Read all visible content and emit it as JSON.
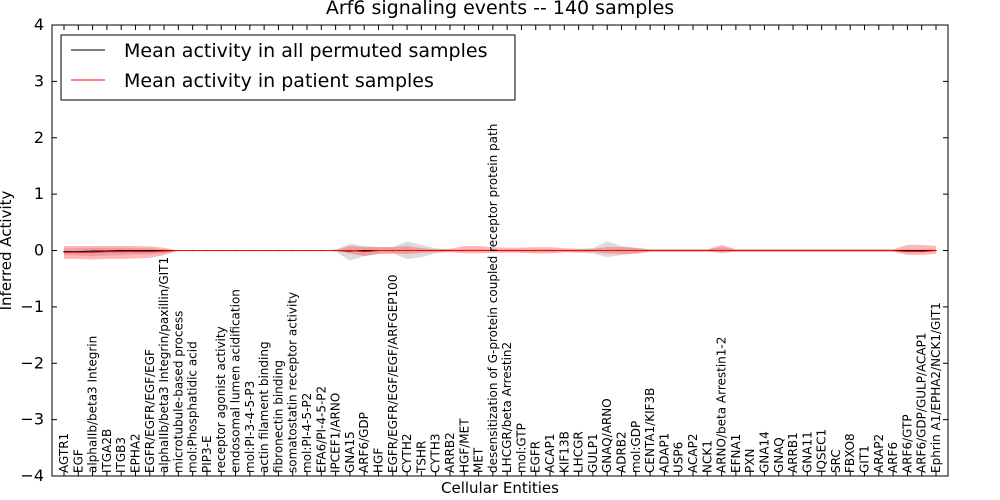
{
  "chart_data": {
    "type": "line",
    "title": "Arf6 signaling events -- 140 samples",
    "xlabel": "Cellular Entities",
    "ylabel": "Inferred Activity",
    "ylim": [
      -4,
      4
    ],
    "yticks": [
      4,
      3,
      2,
      1,
      0,
      -1,
      -2,
      -3,
      -4
    ],
    "ytick_labels": [
      "4",
      "3",
      "2",
      "1",
      "0",
      "−1",
      "−2",
      "−3",
      "−4"
    ],
    "grid": false,
    "legend_position": "top-left",
    "categories": [
      "AGTR1",
      "EGF",
      "alphaIIb/beta3 Integrin",
      "ITGA2B",
      "ITGB3",
      "EPHA2",
      "EGFR/EGFR/EGF/EGF",
      "alphaIIb/beta3 Integrin/paxillin/GIT1",
      "microtubule-based process",
      "mol:Phosphatidic acid",
      "PIP3-E",
      "receptor agonist activity",
      "endosomal lumen acidification",
      "mol:PI-3-4-5-P3",
      "actin filament binding",
      "fibronectin binding",
      "somatostatin receptor activity",
      "mol:PI-4-5-P2",
      "EFA6/PI-4-5-P2",
      "IPCEF1/ARNO",
      "GNA15",
      "ARF6/GDP",
      "HGF",
      "EGFR/EGFR/EGF/EGF/ARFGEP100",
      "CYTH2",
      "TSHR",
      "CYTH3",
      "ARRB2",
      "HGF/MET",
      "MET",
      "desensitization of G-protein coupled receptor protein path",
      "LHCGR/beta Arrestin2",
      "mol:GTP",
      "EGFR",
      "ACAP1",
      "KIF13B",
      "LHCGR",
      "GULP1",
      "GNAQ/ARNO",
      "ADRB2",
      "mol:GDP",
      "CENTA1/KIF3B",
      "ADAP1",
      "USP6",
      "ACAP2",
      "NCK1",
      "ARNO/beta Arrestin1-2",
      "EFNA1",
      "PXN",
      "GNA14",
      "GNAQ",
      "ARRB1",
      "GNA11",
      "IQSEC1",
      "SRC",
      "FBXO8",
      "GIT1",
      "ARAP2",
      "ARF6",
      "ARF6/GTP",
      "ARF6/GDP/GULP/ACAP1",
      "Ephrin A1/EPHA2/NCK1/GIT1"
    ],
    "series": [
      {
        "name": "Mean activity in all permuted samples",
        "color": "#000000",
        "values": [
          -0.02,
          -0.02,
          -0.01,
          -0.01,
          0.0,
          0.0,
          0.0,
          0.0,
          0.0,
          0.0,
          0.0,
          0.0,
          0.0,
          0.0,
          0.0,
          0.0,
          0.0,
          0.0,
          0.0,
          0.0,
          -0.01,
          0.0,
          0.0,
          0.0,
          0.0,
          0.0,
          0.0,
          0.0,
          0.0,
          0.0,
          0.0,
          0.0,
          0.0,
          0.0,
          0.0,
          0.0,
          0.0,
          0.0,
          0.0,
          0.0,
          0.0,
          0.0,
          0.0,
          0.0,
          0.0,
          0.0,
          0.0,
          0.0,
          0.0,
          0.0,
          0.0,
          0.0,
          0.0,
          0.0,
          0.0,
          0.0,
          0.0,
          0.0,
          0.0,
          0.0,
          0.0,
          0.0
        ],
        "band_lower": [
          -0.08,
          -0.09,
          -0.1,
          -0.09,
          -0.08,
          -0.07,
          -0.07,
          -0.05,
          0.0,
          0.0,
          0.0,
          0.0,
          0.0,
          0.0,
          0.0,
          0.0,
          0.0,
          0.0,
          0.0,
          -0.02,
          -0.18,
          -0.1,
          -0.06,
          -0.05,
          -0.15,
          -0.12,
          -0.05,
          -0.02,
          -0.02,
          -0.02,
          -0.02,
          -0.02,
          -0.03,
          -0.03,
          -0.03,
          -0.03,
          -0.04,
          -0.05,
          -0.12,
          -0.08,
          -0.06,
          -0.02,
          -0.02,
          -0.02,
          -0.02,
          -0.02,
          -0.04,
          -0.02,
          -0.02,
          -0.02,
          -0.02,
          -0.02,
          -0.02,
          -0.02,
          -0.02,
          -0.02,
          -0.02,
          -0.02,
          -0.02,
          -0.02,
          -0.02,
          -0.02
        ],
        "band_upper": [
          0.04,
          0.04,
          0.05,
          0.05,
          0.05,
          0.04,
          0.04,
          0.02,
          0.0,
          0.0,
          0.0,
          0.0,
          0.0,
          0.0,
          0.0,
          0.0,
          0.0,
          0.0,
          0.0,
          0.02,
          0.12,
          0.08,
          0.06,
          0.06,
          0.16,
          0.1,
          0.04,
          0.02,
          0.02,
          0.02,
          0.02,
          0.02,
          0.02,
          0.02,
          0.02,
          0.02,
          0.02,
          0.04,
          0.16,
          0.08,
          0.04,
          0.02,
          0.02,
          0.02,
          0.02,
          0.02,
          0.06,
          0.02,
          0.02,
          0.02,
          0.02,
          0.02,
          0.02,
          0.02,
          0.02,
          0.02,
          0.02,
          0.02,
          0.02,
          0.02,
          0.02,
          0.02
        ]
      },
      {
        "name": "Mean activity in patient samples",
        "color": "#ff0000",
        "values": [
          -0.03,
          -0.03,
          -0.03,
          -0.02,
          -0.02,
          -0.02,
          -0.02,
          -0.01,
          0.0,
          0.0,
          0.0,
          0.0,
          0.0,
          0.0,
          0.0,
          0.0,
          0.0,
          0.0,
          0.0,
          0.0,
          0.0,
          -0.02,
          0.0,
          0.0,
          0.0,
          0.0,
          0.0,
          0.0,
          0.0,
          0.0,
          0.0,
          0.0,
          0.0,
          0.0,
          0.0,
          0.0,
          0.0,
          0.0,
          0.0,
          0.0,
          0.0,
          0.0,
          0.0,
          0.0,
          0.0,
          0.0,
          0.0,
          0.0,
          0.0,
          0.0,
          0.0,
          0.0,
          0.0,
          0.0,
          0.0,
          0.0,
          0.0,
          0.0,
          0.0,
          -0.02,
          -0.02,
          0.0
        ],
        "band_lower": [
          -0.15,
          -0.15,
          -0.16,
          -0.15,
          -0.15,
          -0.14,
          -0.13,
          -0.08,
          0.0,
          0.0,
          0.0,
          0.0,
          0.0,
          0.0,
          0.0,
          0.0,
          0.0,
          0.0,
          0.0,
          0.0,
          -0.05,
          -0.1,
          -0.06,
          -0.05,
          -0.06,
          -0.04,
          -0.03,
          -0.03,
          -0.05,
          -0.05,
          -0.04,
          -0.04,
          -0.04,
          -0.05,
          -0.05,
          -0.03,
          -0.03,
          -0.03,
          -0.05,
          -0.06,
          -0.05,
          -0.02,
          -0.02,
          -0.02,
          -0.02,
          -0.02,
          -0.04,
          -0.02,
          -0.02,
          -0.02,
          -0.02,
          -0.02,
          -0.02,
          -0.02,
          -0.02,
          -0.02,
          -0.02,
          -0.02,
          -0.02,
          -0.08,
          -0.08,
          -0.06
        ],
        "band_upper": [
          0.08,
          0.08,
          0.08,
          0.08,
          0.08,
          0.08,
          0.07,
          0.05,
          0.0,
          0.0,
          0.0,
          0.0,
          0.0,
          0.0,
          0.0,
          0.0,
          0.0,
          0.0,
          0.0,
          0.0,
          0.08,
          0.06,
          0.06,
          0.06,
          0.08,
          0.04,
          0.02,
          0.03,
          0.08,
          0.08,
          0.06,
          0.05,
          0.05,
          0.06,
          0.06,
          0.04,
          0.03,
          0.03,
          0.06,
          0.06,
          0.05,
          0.02,
          0.02,
          0.02,
          0.02,
          0.02,
          0.1,
          0.02,
          0.02,
          0.02,
          0.02,
          0.02,
          0.02,
          0.02,
          0.02,
          0.02,
          0.02,
          0.02,
          0.02,
          0.1,
          0.1,
          0.08
        ]
      }
    ]
  }
}
